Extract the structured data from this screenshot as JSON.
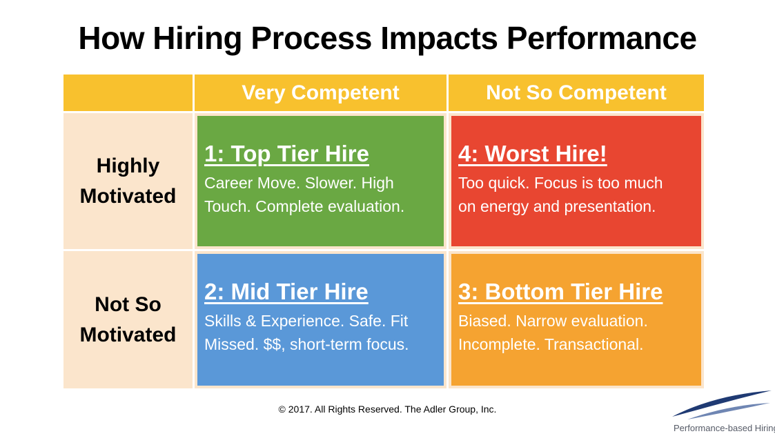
{
  "title": "How Hiring Process Impacts Performance",
  "columns": [
    "Very Competent",
    "Not So Competent"
  ],
  "rows": [
    {
      "line1": "Highly",
      "line2": "Motivated"
    },
    {
      "line1": "Not So",
      "line2": "Motivated"
    }
  ],
  "quadrants": {
    "top_left": {
      "title": "1: Top Tier Hire",
      "line1": "Career Move. Slower. High",
      "line2": "Touch. Complete evaluation.",
      "color": "#6aa843"
    },
    "top_right": {
      "title": "4: Worst Hire!",
      "line1": "Too quick. Focus is too much",
      "line2": "on energy and presentation.",
      "color": "#e84631"
    },
    "bottom_left": {
      "title": "2: Mid Tier Hire",
      "line1": "Skills & Experience. Safe. Fit",
      "line2": "Missed. $$, short-term focus.",
      "color": "#5a98d8"
    },
    "bottom_right": {
      "title": "3: Bottom Tier Hire",
      "line1": "Biased. Narrow evaluation.",
      "line2": "Incomplete. Transactional.",
      "color": "#f5a331"
    }
  },
  "colors": {
    "header": "#f8c12e",
    "row_label_bg": "#fbe5cc"
  },
  "footer": "© 2017. All Rights Reserved. The Adler Group, Inc.",
  "logo": {
    "text": "Performance-based Hiring",
    "icon": "swoosh-logo-icon"
  }
}
